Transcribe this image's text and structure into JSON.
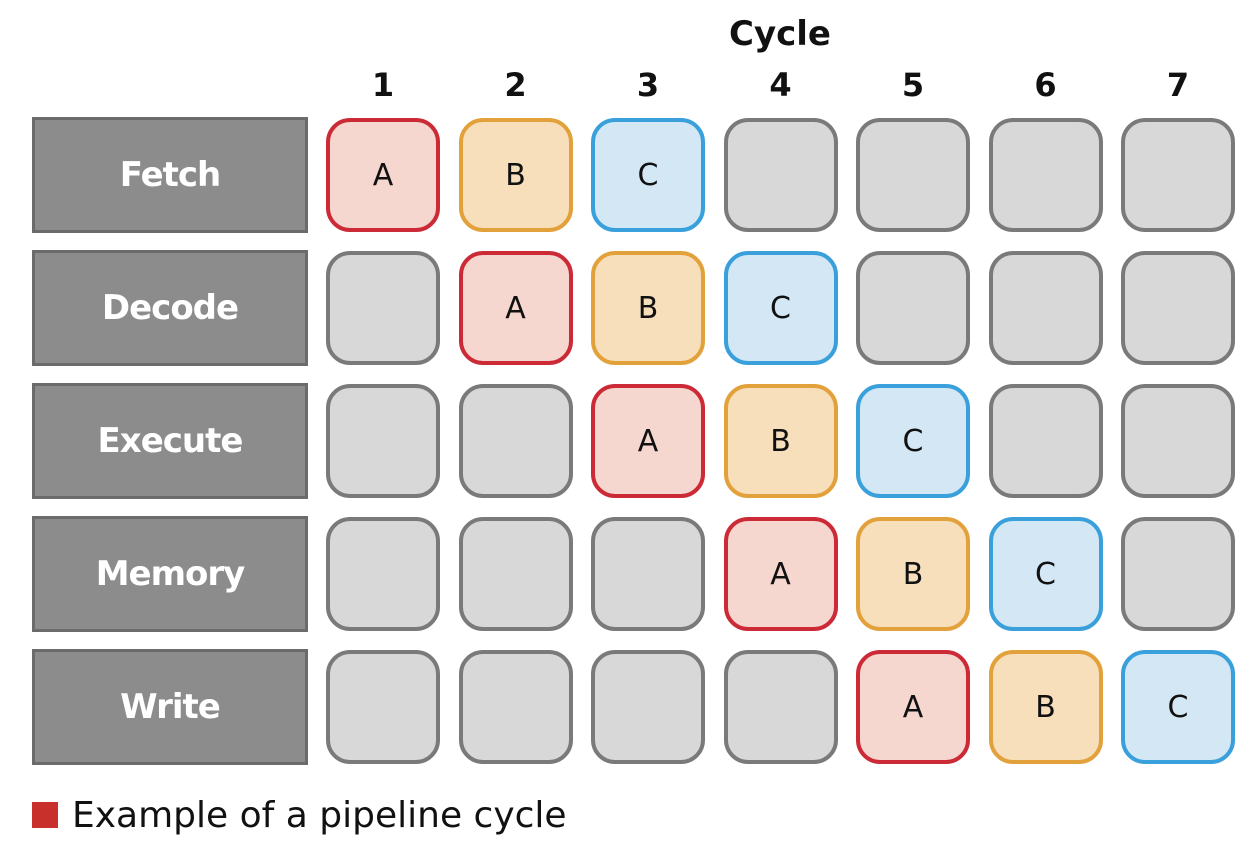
{
  "cycle_title": "Cycle",
  "cycles": [
    "1",
    "2",
    "3",
    "4",
    "5",
    "6",
    "7"
  ],
  "stages": [
    {
      "name": "Fetch",
      "cells": [
        "A",
        "B",
        "C",
        "",
        "",
        "",
        ""
      ]
    },
    {
      "name": "Decode",
      "cells": [
        "",
        "A",
        "B",
        "C",
        "",
        "",
        ""
      ]
    },
    {
      "name": "Execute",
      "cells": [
        "",
        "",
        "A",
        "B",
        "C",
        "",
        ""
      ]
    },
    {
      "name": "Memory",
      "cells": [
        "",
        "",
        "",
        "A",
        "B",
        "C",
        ""
      ]
    },
    {
      "name": "Write",
      "cells": [
        "",
        "",
        "",
        "",
        "A",
        "B",
        "C"
      ]
    }
  ],
  "instruction_colors": {
    "A": {
      "fill": "#f6d7d0",
      "border": "#cc2a36"
    },
    "B": {
      "fill": "#f7dfbc",
      "border": "#e3a13c"
    },
    "C": {
      "fill": "#d3e7f5",
      "border": "#3aa0db"
    },
    "empty": {
      "fill": "#d8d8d8",
      "border": "#7a7a7a"
    }
  },
  "stage_label_color": "#8c8c8c",
  "legend": {
    "swatch_color": "#c8302c",
    "text": "Example of a pipeline cycle"
  }
}
